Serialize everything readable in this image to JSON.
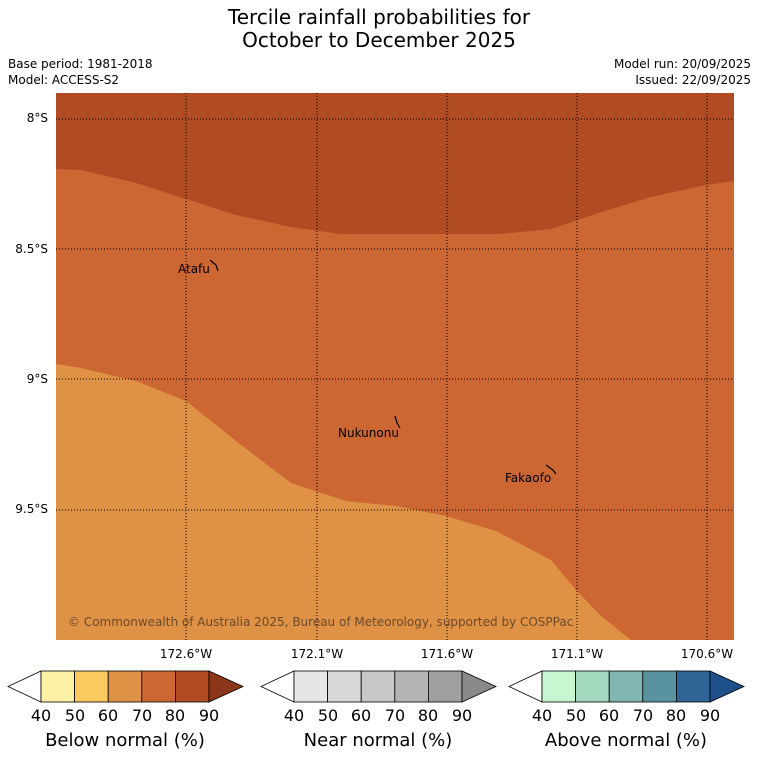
{
  "header": {
    "title_line1": "Tercile rainfall probabilities for",
    "title_line2": "October to December 2025",
    "base_period": "Base period: 1981-2018",
    "model": "Model: ACCESS-S2",
    "model_run": "Model run: 20/09/2025",
    "issued": "Issued: 22/09/2025"
  },
  "map": {
    "lat_labels": [
      "8°S",
      "8.5°S",
      "9°S",
      "9.5°S"
    ],
    "lon_labels": [
      "172.6°W",
      "172.1°W",
      "171.6°W",
      "171.1°W",
      "170.6°W"
    ],
    "places": [
      {
        "name": "Atafu"
      },
      {
        "name": "Nukunonu"
      },
      {
        "name": "Fakaofo"
      }
    ],
    "copyright": "© Commonwealth of Australia 2025, Bureau of Meteorology, supported by COSPPac",
    "zone_colors": {
      "below_80_90": "#b04b24",
      "below_70_80": "#cc6633",
      "below_60_70": "#df9145"
    }
  },
  "legends": [
    {
      "label": "Below normal (%)",
      "ticks": [
        "40",
        "50",
        "60",
        "70",
        "80",
        "90"
      ],
      "colors": [
        "#fef0a5",
        "#fdca62",
        "#df9145",
        "#cc6633",
        "#b04b24",
        "#8b3618"
      ]
    },
    {
      "label": "Near normal (%)",
      "ticks": [
        "40",
        "50",
        "60",
        "70",
        "80",
        "90"
      ],
      "colors": [
        "#e6e6e6",
        "#d8d8d8",
        "#c8c8c8",
        "#b4b4b4",
        "#a0a0a0",
        "#8a8a8a"
      ]
    },
    {
      "label": "Above normal (%)",
      "ticks": [
        "40",
        "50",
        "60",
        "70",
        "80",
        "90"
      ],
      "colors": [
        "#c6f7d0",
        "#a2d8bd",
        "#80b7b1",
        "#5a93a0",
        "#2e6596",
        "#1d4f8a"
      ]
    }
  ]
}
